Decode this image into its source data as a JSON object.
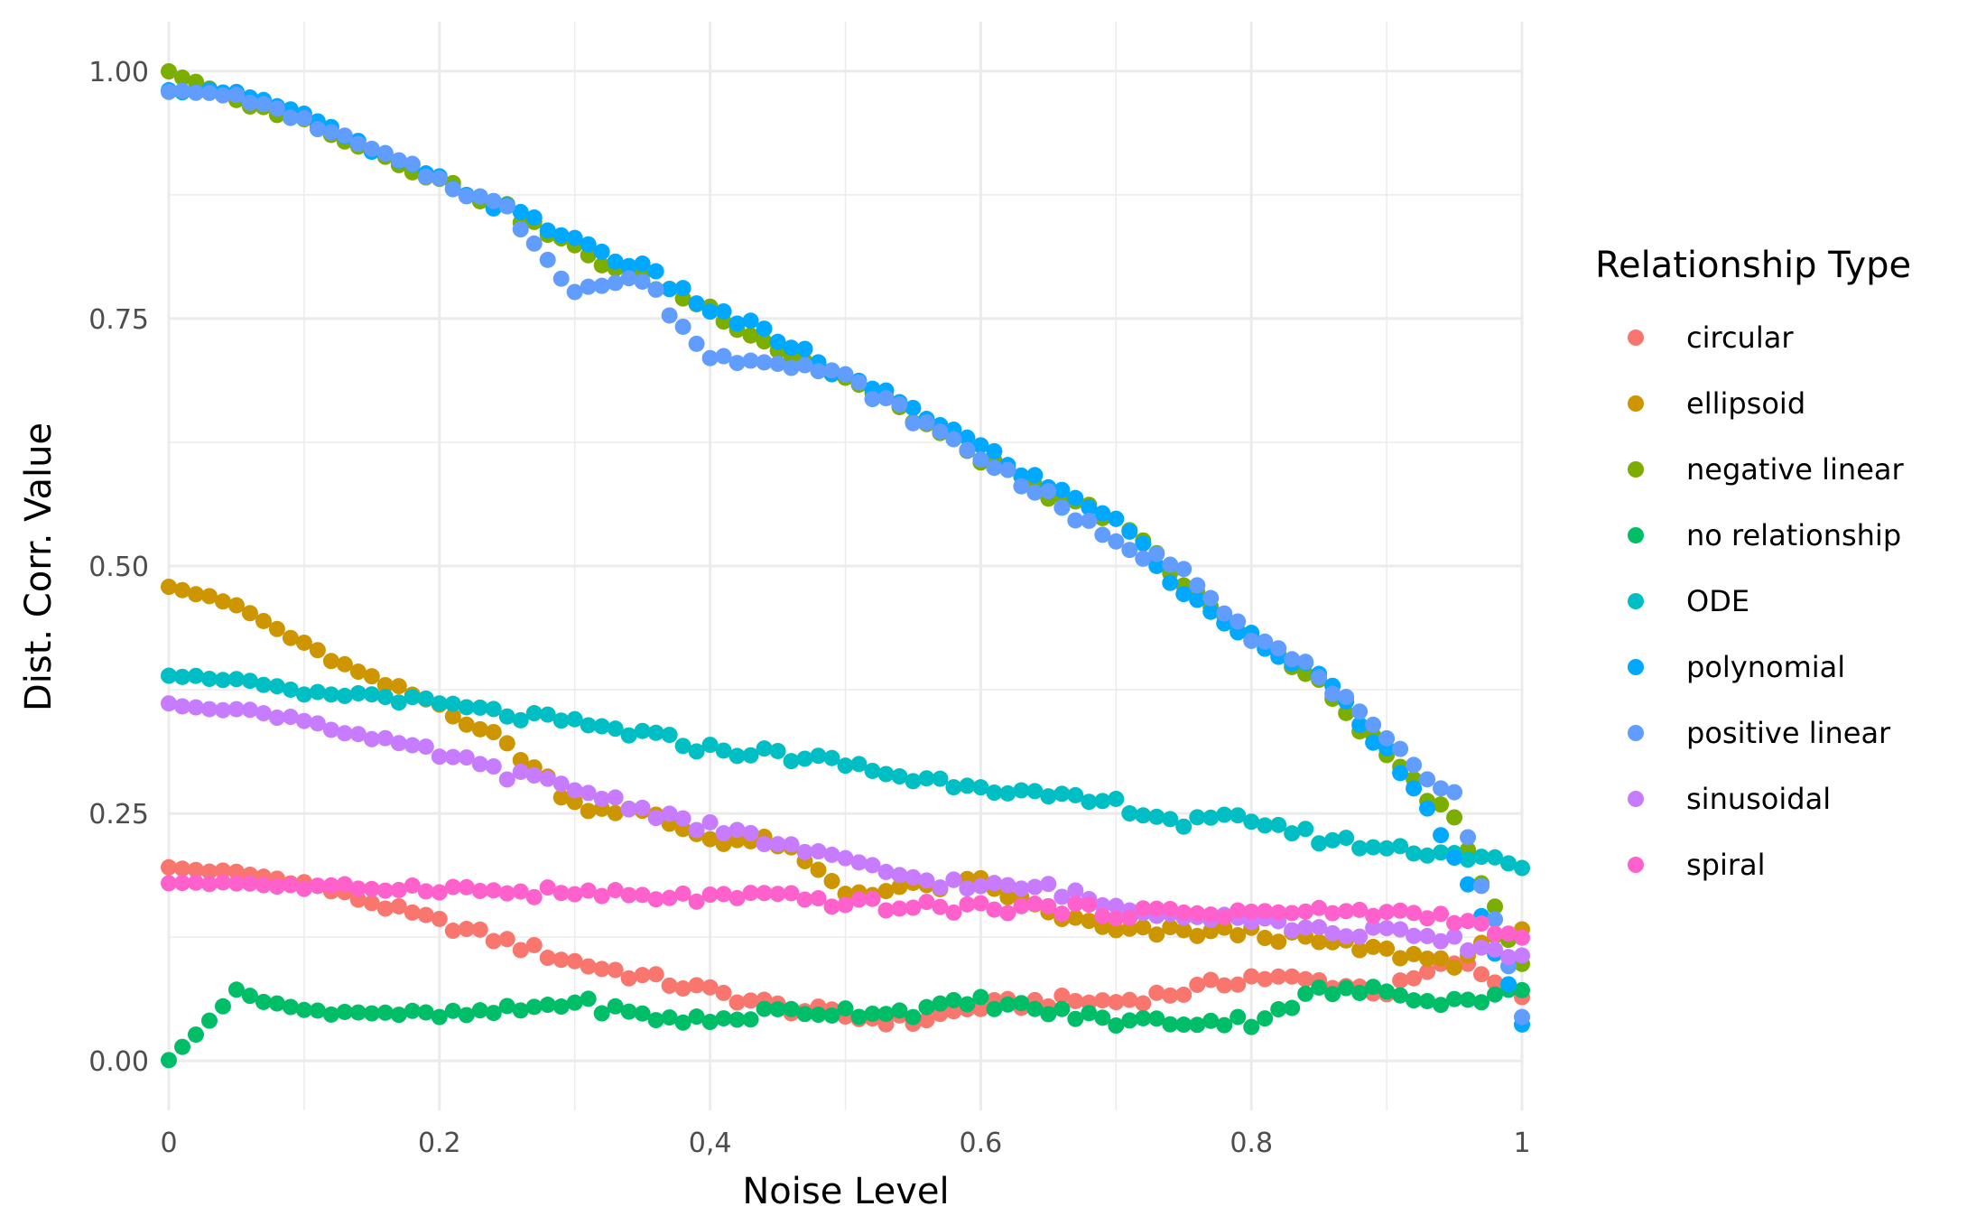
{
  "chart_data": {
    "type": "scatter",
    "xlabel": "Noise Level",
    "ylabel": "Dist. Corr. Value",
    "xlim": [
      0,
      1
    ],
    "ylim": [
      -0.05,
      1.05
    ],
    "x_ticks": [
      0,
      0.2,
      0.4,
      0.6,
      0.8,
      1
    ],
    "x_tick_labels": [
      "0",
      "0.2",
      "0,4",
      "0.6",
      "0.8",
      "1"
    ],
    "y_ticks": [
      0,
      0.25,
      0.5,
      0.75,
      1
    ],
    "y_tick_labels": [
      "0.00",
      "0.25",
      "0.50",
      "0.75",
      "1.00"
    ],
    "grid": true,
    "legend_title": "Relationship Type",
    "legend_position": "right",
    "x": [
      0.0,
      0.05,
      0.1,
      0.15,
      0.2,
      0.25,
      0.3,
      0.35,
      0.4,
      0.45,
      0.5,
      0.55,
      0.6,
      0.65,
      0.7,
      0.75,
      0.8,
      0.85,
      0.9,
      0.95,
      1.0
    ],
    "series": [
      {
        "name": "circular",
        "color": "#F8766D",
        "values": [
          0.195,
          0.19,
          0.18,
          0.16,
          0.14,
          0.12,
          0.1,
          0.085,
          0.07,
          0.055,
          0.045,
          0.04,
          0.055,
          0.06,
          0.06,
          0.07,
          0.085,
          0.08,
          0.07,
          0.1,
          0.07
        ]
      },
      {
        "name": "ellipsoid",
        "color": "#CD9600",
        "values": [
          0.48,
          0.46,
          0.42,
          0.385,
          0.36,
          0.32,
          0.26,
          0.25,
          0.225,
          0.22,
          0.17,
          0.175,
          0.18,
          0.15,
          0.13,
          0.13,
          0.13,
          0.12,
          0.11,
          0.1,
          0.135
        ]
      },
      {
        "name": "negative linear",
        "color": "#7CAE00",
        "values": [
          1.0,
          0.97,
          0.95,
          0.92,
          0.89,
          0.86,
          0.82,
          0.79,
          0.76,
          0.72,
          0.69,
          0.65,
          0.61,
          0.57,
          0.55,
          0.48,
          0.43,
          0.38,
          0.31,
          0.24,
          0.1
        ]
      },
      {
        "name": "no relationship",
        "color": "#00BE67",
        "values": [
          0.0,
          0.07,
          0.05,
          0.05,
          0.045,
          0.05,
          0.06,
          0.045,
          0.04,
          0.05,
          0.05,
          0.05,
          0.06,
          0.05,
          0.04,
          0.04,
          0.04,
          0.07,
          0.07,
          0.06,
          0.07
        ]
      },
      {
        "name": "ODE",
        "color": "#00BFC4",
        "values": [
          0.39,
          0.385,
          0.37,
          0.37,
          0.36,
          0.35,
          0.34,
          0.33,
          0.315,
          0.31,
          0.3,
          0.285,
          0.28,
          0.265,
          0.26,
          0.24,
          0.245,
          0.225,
          0.215,
          0.21,
          0.195
        ]
      },
      {
        "name": "polynomial",
        "color": "#00A9FF",
        "values": [
          0.98,
          0.98,
          0.955,
          0.92,
          0.89,
          0.86,
          0.83,
          0.8,
          0.76,
          0.73,
          0.69,
          0.66,
          0.62,
          0.58,
          0.55,
          0.47,
          0.43,
          0.39,
          0.31,
          0.21,
          0.04
        ]
      },
      {
        "name": "positive linear",
        "color": "#619CFF",
        "values": [
          0.98,
          0.975,
          0.95,
          0.92,
          0.89,
          0.86,
          0.78,
          0.79,
          0.71,
          0.71,
          0.69,
          0.65,
          0.61,
          0.57,
          0.52,
          0.5,
          0.43,
          0.39,
          0.32,
          0.27,
          0.05
        ]
      },
      {
        "name": "sinusoidal",
        "color": "#C77CFF",
        "values": [
          0.36,
          0.355,
          0.345,
          0.325,
          0.31,
          0.29,
          0.275,
          0.255,
          0.235,
          0.22,
          0.2,
          0.185,
          0.175,
          0.175,
          0.155,
          0.15,
          0.145,
          0.13,
          0.13,
          0.12,
          0.105
        ]
      },
      {
        "name": "spiral",
        "color": "#FF61CC",
        "values": [
          0.18,
          0.18,
          0.175,
          0.175,
          0.175,
          0.17,
          0.17,
          0.165,
          0.165,
          0.165,
          0.16,
          0.155,
          0.155,
          0.155,
          0.15,
          0.15,
          0.15,
          0.15,
          0.15,
          0.145,
          0.12
        ]
      }
    ]
  }
}
